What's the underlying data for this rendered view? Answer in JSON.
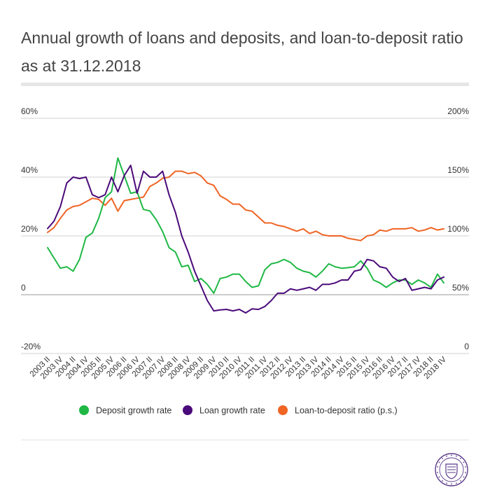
{
  "title": "Annual growth of loans and deposits, and loan-to-deposit ratio as at 31.12.2018",
  "colors": {
    "deposit": "#1fb845",
    "loan": "#4b0a7a",
    "ratio": "#f06424",
    "grid": "#d0d0d0",
    "zero": "#9a9a9a"
  },
  "chart_data": {
    "type": "line",
    "title": "Annual growth of loans and deposits, and loan-to-deposit ratio as at 31.12.2018",
    "x": [
      "2003 II",
      "2003 III",
      "2003 IV",
      "2004 I",
      "2004 II",
      "2004 III",
      "2004 IV",
      "2005 I",
      "2005 II",
      "2005 III",
      "2005 IV",
      "2006 I",
      "2006 II",
      "2006 III",
      "2006 IV",
      "2007 I",
      "2007 II",
      "2007 III",
      "2007 IV",
      "2008 I",
      "2008 II",
      "2008 III",
      "2008 IV",
      "2009 I",
      "2009 II",
      "2009 III",
      "2009 IV",
      "2010 I",
      "2010 II",
      "2010 III",
      "2010 IV",
      "2011 I",
      "2011 II",
      "2011 III",
      "2011 IV",
      "2012 I",
      "2012 II",
      "2012 III",
      "2012 IV",
      "2013 I",
      "2013 II",
      "2013 III",
      "2013 IV",
      "2014 I",
      "2014 II",
      "2014 III",
      "2014 IV",
      "2015 I",
      "2015 II",
      "2015 III",
      "2015 IV",
      "2016 I",
      "2016 II",
      "2016 III",
      "2016 IV",
      "2017 I",
      "2017 II",
      "2017 III",
      "2017 IV",
      "2018 I",
      "2018 II",
      "2018 III",
      "2018 IV"
    ],
    "x_tick_labels": [
      "2003 II",
      "2003 IV",
      "2004 II",
      "2004 IV",
      "2005 II",
      "2005 IV",
      "2006 II",
      "2006 IV",
      "2007 II",
      "2007 IV",
      "2008 II",
      "2008 IV",
      "2009 II",
      "2009 IV",
      "2010 II",
      "2010 IV",
      "2011 II",
      "2011 IV",
      "2012 II",
      "2012 IV",
      "2013 II",
      "2013 IV",
      "2014 II",
      "2014 IV",
      "2015 II",
      "2015 IV",
      "2016 II",
      "2016 IV",
      "2017 II",
      "2017 IV",
      "2018 II",
      "2018 IV"
    ],
    "y_ticks": [
      "-20%",
      "0",
      "20%",
      "40%",
      "60%"
    ],
    "y2_ticks": [
      "0",
      "50%",
      "100%",
      "150%",
      "200%"
    ],
    "ylim": [
      -20,
      60
    ],
    "y2lim": [
      0,
      200
    ],
    "grid": true,
    "legend_position": "bottom",
    "series": [
      {
        "name": "Deposit growth rate",
        "axis": "left",
        "values": [
          16,
          12.5,
          9,
          9.5,
          8,
          12,
          19.5,
          21,
          26,
          33,
          35,
          46.5,
          40.5,
          34.5,
          35,
          29,
          28.5,
          25.5,
          21.5,
          16,
          14.5,
          9.5,
          10,
          4.5,
          5.5,
          3.5,
          0.5,
          5.5,
          6,
          7,
          7,
          4.5,
          2.5,
          3,
          8.5,
          10.5,
          11,
          12,
          11,
          9,
          8,
          7.5,
          6,
          8,
          10.5,
          9.5,
          9,
          9.2,
          9.5,
          11.5,
          9,
          5,
          4,
          2.5,
          4,
          5,
          5,
          3.5,
          5,
          4,
          2.5,
          7,
          4
        ]
      },
      {
        "name": "Loan growth rate",
        "axis": "left",
        "values": [
          22.5,
          25,
          30,
          38,
          40,
          39.5,
          40,
          34,
          33,
          34,
          40,
          35,
          40.5,
          44,
          34.5,
          42,
          40,
          40,
          42,
          34,
          28,
          20,
          14.5,
          8,
          3,
          -2,
          -5.5,
          -5.2,
          -5,
          -5.5,
          -5,
          -6.2,
          -4.8,
          -5,
          -4,
          -2,
          0.5,
          0.5,
          2,
          1.5,
          2,
          2.5,
          1.5,
          3.5,
          3.5,
          4,
          5,
          5,
          8,
          8.5,
          12,
          11.5,
          9.5,
          9,
          6,
          4.5,
          5.5,
          1.5,
          2,
          2.5,
          2,
          5,
          6
        ]
      },
      {
        "name": "Loan-to-deposit ratio (p.s.)",
        "axis": "right",
        "values": [
          103,
          107,
          115,
          122,
          125,
          126,
          129,
          132,
          131,
          126,
          132,
          121,
          130,
          131,
          132,
          133,
          142,
          145,
          149,
          150,
          155,
          155,
          153,
          154,
          151,
          145,
          143,
          134,
          131,
          127,
          127,
          122,
          121,
          116,
          111,
          111,
          109,
          108,
          106,
          104,
          106,
          102,
          104,
          101,
          100,
          100,
          100,
          98,
          97,
          96,
          100,
          101,
          105,
          104,
          106,
          106,
          106,
          107,
          104,
          105,
          107,
          105,
          106
        ]
      }
    ]
  },
  "legend": [
    {
      "label": "Deposit growth rate"
    },
    {
      "label": "Loan growth rate"
    },
    {
      "label": "Loan-to-deposit ratio (p.s.)"
    }
  ],
  "logo": {
    "icon": "seal-icon",
    "text": "EESTI PANK"
  }
}
